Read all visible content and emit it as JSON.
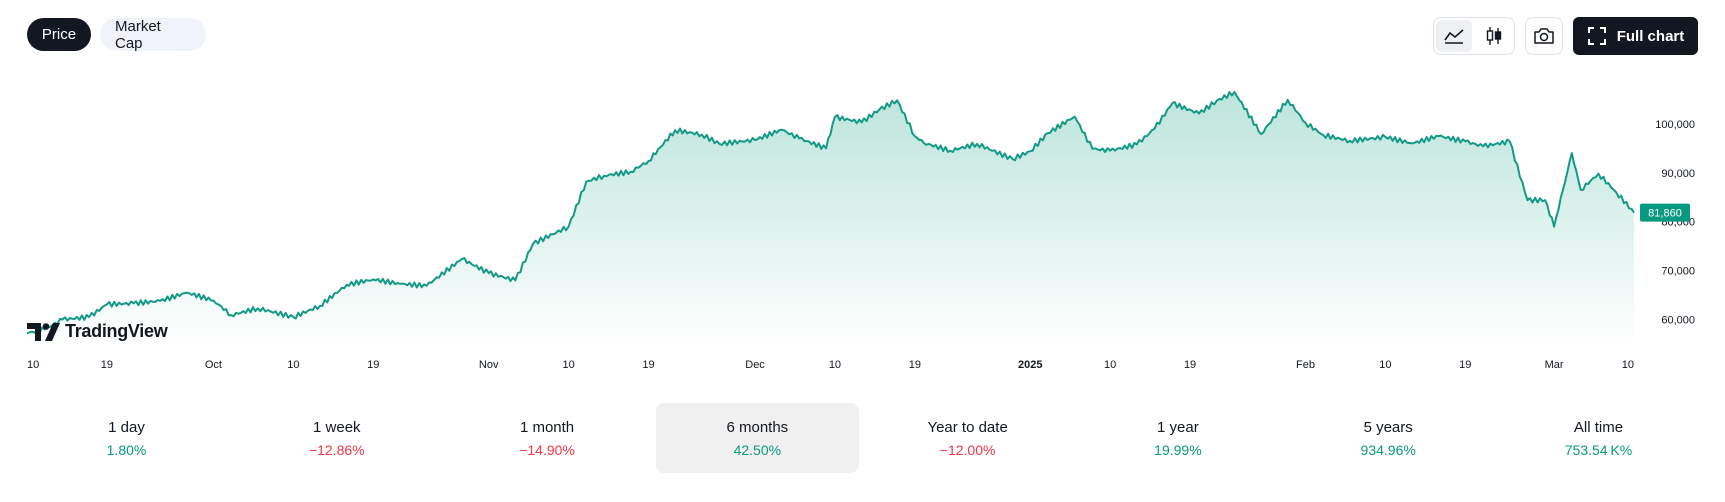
{
  "toggle": {
    "price_label": "Price",
    "marketcap_label": "Market Cap"
  },
  "toolbar": {
    "full_chart_label": "Full chart",
    "icons": [
      "area-chart-icon",
      "candles-icon",
      "camera-icon",
      "fullscreen-icon"
    ]
  },
  "branding": {
    "logo_text": "TradingView"
  },
  "colors": {
    "line": "#139a86",
    "fill_top": "#b9e3da",
    "badge": "#089981",
    "positive": "#089981",
    "negative": "#f23645"
  },
  "chart_data": {
    "type": "area",
    "title": "",
    "xlabel": "",
    "ylabel": "",
    "ylim": [
      55000,
      111000
    ],
    "y_ticks": [
      "100,000",
      "90,000",
      "80,000",
      "70,000",
      "60,000"
    ],
    "y_tick_values": [
      100000,
      90000,
      80000,
      70000,
      60000
    ],
    "x_tick_labels": [
      "10",
      "19",
      "Oct",
      "10",
      "19",
      "Nov",
      "10",
      "19",
      "Dec",
      "10",
      "19",
      "2025",
      "10",
      "19",
      "Feb",
      "10",
      "19",
      "Mar",
      "10"
    ],
    "x_tick_dates": [
      "2024-09-10",
      "2024-09-19",
      "2024-10-01",
      "2024-10-10",
      "2024-10-19",
      "2024-11-01",
      "2024-11-10",
      "2024-11-19",
      "2024-12-01",
      "2024-12-10",
      "2024-12-19",
      "2025-01-01",
      "2025-01-10",
      "2025-01-19",
      "2025-02-01",
      "2025-02-10",
      "2025-02-19",
      "2025-03-01",
      "2025-03-10"
    ],
    "bold_ticks": [
      "2025"
    ],
    "last_price_label": "81,860",
    "series": [
      {
        "x": [
          "2024-09-10",
          "2024-09-12",
          "2024-09-14",
          "2024-09-17",
          "2024-09-19",
          "2024-09-22",
          "2024-09-25",
          "2024-09-28",
          "2024-10-01",
          "2024-10-03",
          "2024-10-06",
          "2024-10-10",
          "2024-10-13",
          "2024-10-16",
          "2024-10-19",
          "2024-10-22",
          "2024-10-25",
          "2024-10-29",
          "2024-11-01",
          "2024-11-04",
          "2024-11-06",
          "2024-11-10",
          "2024-11-12",
          "2024-11-14",
          "2024-11-17",
          "2024-11-19",
          "2024-11-22",
          "2024-11-25",
          "2024-11-27",
          "2024-12-01",
          "2024-12-04",
          "2024-12-06",
          "2024-12-09",
          "2024-12-10",
          "2024-12-13",
          "2024-12-15",
          "2024-12-17",
          "2024-12-19",
          "2024-12-20",
          "2024-12-23",
          "2024-12-26",
          "2024-12-30",
          "2025-01-01",
          "2025-01-03",
          "2025-01-06",
          "2025-01-08",
          "2025-01-10",
          "2025-01-13",
          "2025-01-15",
          "2025-01-17",
          "2025-01-20",
          "2025-01-22",
          "2025-01-24",
          "2025-01-27",
          "2025-01-30",
          "2025-02-01",
          "2025-02-03",
          "2025-02-06",
          "2025-02-10",
          "2025-02-13",
          "2025-02-16",
          "2025-02-19",
          "2025-02-21",
          "2025-02-24",
          "2025-02-26",
          "2025-02-28",
          "2025-03-01",
          "2025-03-02",
          "2025-03-03",
          "2025-03-04",
          "2025-03-06",
          "2025-03-08",
          "2025-03-10"
        ],
        "y": [
          57200,
          58000,
          60000,
          60500,
          63100,
          63300,
          63800,
          65500,
          63900,
          60900,
          62300,
          60500,
          62800,
          67100,
          68200,
          67300,
          66900,
          72400,
          69500,
          68000,
          75500,
          79000,
          88200,
          89400,
          90200,
          92400,
          98700,
          97800,
          95900,
          96700,
          98800,
          97000,
          95000,
          101400,
          100300,
          102900,
          104800,
          97500,
          96100,
          94500,
          95900,
          92800,
          94400,
          98100,
          101500,
          94900,
          94500,
          95800,
          99000,
          104200,
          102100,
          104700,
          106500,
          97900,
          104900,
          100200,
          97700,
          96500,
          97300,
          96000,
          97500,
          96400,
          95400,
          96400,
          84400,
          84400,
          79000,
          86500,
          94000,
          86500,
          89800,
          86000,
          81860
        ]
      }
    ]
  },
  "performance": [
    {
      "label": "1 day",
      "value": "1.80%",
      "trend": "pos"
    },
    {
      "label": "1 week",
      "value": "−12.86%",
      "trend": "neg"
    },
    {
      "label": "1 month",
      "value": "−14.90%",
      "trend": "neg"
    },
    {
      "label": "6 months",
      "value": "42.50%",
      "trend": "pos"
    },
    {
      "label": "Year to date",
      "value": "−12.00%",
      "trend": "neg"
    },
    {
      "label": "1 year",
      "value": "19.99%",
      "trend": "pos"
    },
    {
      "label": "5 years",
      "value": "934.96%",
      "trend": "pos"
    },
    {
      "label": "All time",
      "value": "753.54 K%",
      "trend": "pos"
    }
  ]
}
